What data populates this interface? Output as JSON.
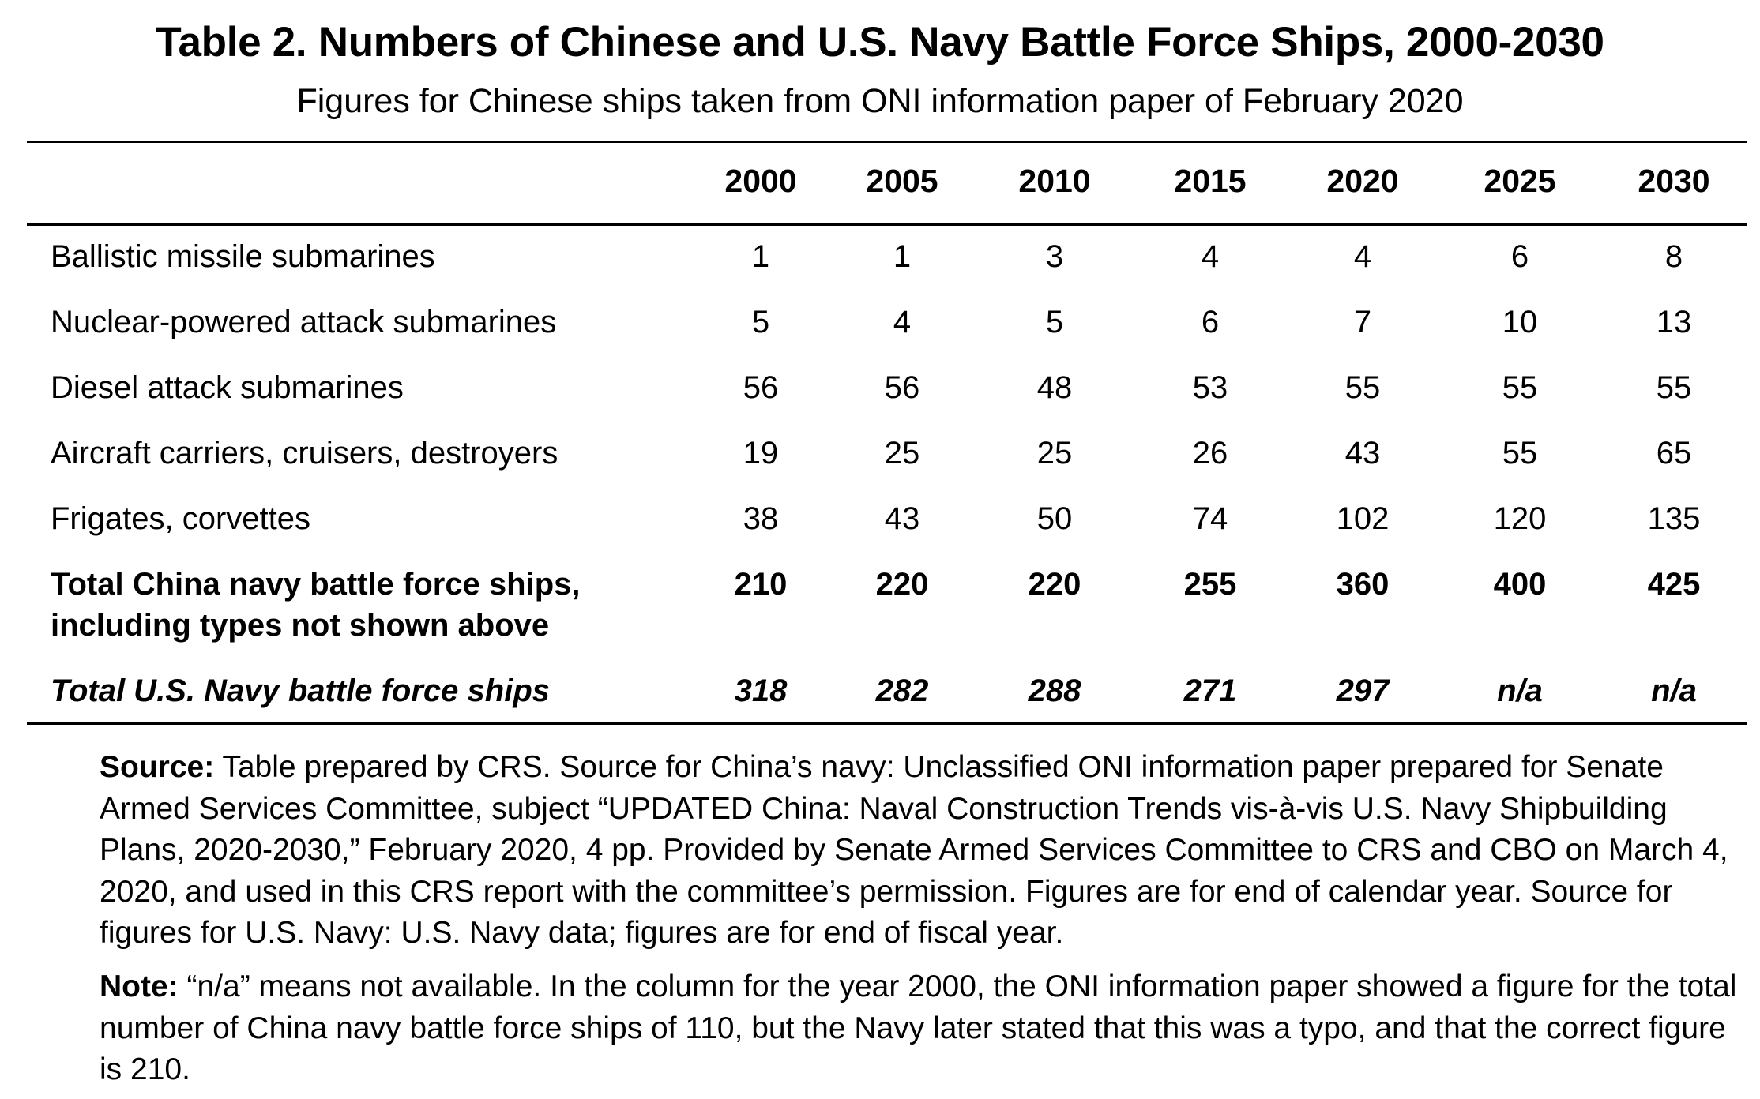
{
  "title": "Table 2. Numbers of Chinese and U.S. Navy Battle Force Ships, 2000-2030",
  "subtitle": "Figures for Chinese ships taken from ONI information paper of February 2020",
  "years": [
    "2000",
    "2005",
    "2010",
    "2015",
    "2020",
    "2025",
    "2030"
  ],
  "rows": [
    {
      "label": "Ballistic missile submarines",
      "values": [
        "1",
        "1",
        "3",
        "4",
        "4",
        "6",
        "8"
      ]
    },
    {
      "label": "Nuclear-powered attack submarines",
      "values": [
        "5",
        "4",
        "5",
        "6",
        "7",
        "10",
        "13"
      ]
    },
    {
      "label": "Diesel attack submarines",
      "values": [
        "56",
        "56",
        "48",
        "53",
        "55",
        "55",
        "55"
      ]
    },
    {
      "label": "Aircraft carriers, cruisers, destroyers",
      "values": [
        "19",
        "25",
        "25",
        "26",
        "43",
        "55",
        "65"
      ]
    },
    {
      "label": "Frigates, corvettes",
      "values": [
        "38",
        "43",
        "50",
        "74",
        "102",
        "120",
        "135"
      ]
    }
  ],
  "total_china": {
    "label_line1": "Total China navy battle force ships,",
    "label_line2": "including types not shown above",
    "values": [
      "210",
      "220",
      "220",
      "255",
      "360",
      "400",
      "425"
    ]
  },
  "total_us": {
    "label": "Total U.S. Navy battle force ships",
    "values": [
      "318",
      "282",
      "288",
      "271",
      "297",
      "n/a",
      "n/a"
    ]
  },
  "source": {
    "heading": "Source:",
    "text": " Table prepared by CRS. Source for China’s navy: Unclassified ONI information paper prepared for Senate Armed Services Committee, subject “UPDATED China: Naval Construction Trends vis-à-vis U.S. Navy Shipbuilding Plans, 2020-2030,” February 2020, 4 pp. Provided by Senate Armed Services Committee to CRS and CBO on March 4, 2020, and used in this CRS report with the committee’s permission. Figures are for end of calendar year. Source for figures for U.S. Navy: U.S. Navy data; figures are for end of fiscal year."
  },
  "note": {
    "heading": "Note:",
    "text": " “n/a” means not available. In the column for the year 2000, the ONI information paper showed a figure for the total number of China navy battle force ships of 110, but the Navy later stated that this was a typo, and that the correct figure is 210."
  }
}
